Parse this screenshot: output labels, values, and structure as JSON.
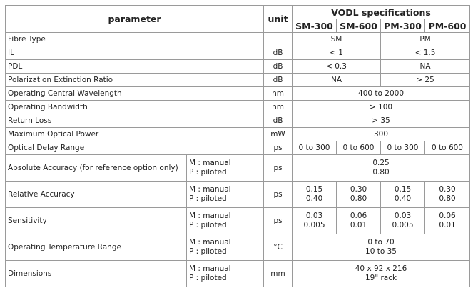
{
  "table": {
    "header": {
      "parameter": "parameter",
      "unit": "unit",
      "group": "VODL specifications",
      "columns": [
        "SM-300",
        "SM-600",
        "PM-300",
        "PM-600"
      ]
    },
    "rows": [
      {
        "parameter": "Fibre Type",
        "cells": [
          "SM",
          "PM"
        ]
      },
      {
        "parameter": "IL",
        "unit": "dB",
        "cells": [
          "< 1",
          "< 1.5"
        ]
      },
      {
        "parameter": "PDL",
        "unit": "dB",
        "cells": [
          "< 0.3",
          "NA"
        ]
      },
      {
        "parameter": "Polarization Extinction Ratio",
        "unit": "dB",
        "cells": [
          "NA",
          "> 25"
        ]
      },
      {
        "parameter": "Operating Central Wavelength",
        "unit": "nm",
        "cells": [
          "400 to 2000"
        ]
      },
      {
        "parameter": "Operating Bandwidth",
        "unit": "nm",
        "cells": [
          "> 100"
        ]
      },
      {
        "parameter": "Return Loss",
        "unit": "dB",
        "cells": [
          "> 35"
        ]
      },
      {
        "parameter": "Maximum Optical Power",
        "unit": "mW",
        "cells": [
          "300"
        ]
      },
      {
        "parameter": "Optical Delay Range",
        "unit": "ps",
        "cells": [
          "0 to 300",
          "0 to 600",
          "0 to 300",
          "0 to 600"
        ]
      },
      {
        "parameter": "Absolute Accuracy (for reference option only)",
        "modes": [
          "M : manual",
          "P : piloted"
        ],
        "unit": "ps",
        "cells": [
          [
            "0.25",
            "0.80"
          ]
        ]
      },
      {
        "parameter": "Relative Accuracy",
        "modes": [
          "M : manual",
          "P : piloted"
        ],
        "unit": "ps",
        "cells": [
          [
            "0.15",
            "0.40"
          ],
          [
            "0.30",
            "0.80"
          ],
          [
            "0.15",
            "0.40"
          ],
          [
            "0.30",
            "0.80"
          ]
        ]
      },
      {
        "parameter": "Sensitivity",
        "modes": [
          "M : manual",
          "P : piloted"
        ],
        "unit": "ps",
        "cells": [
          [
            "0.03",
            "0.005"
          ],
          [
            "0.06",
            "0.01"
          ],
          [
            "0.03",
            "0.005"
          ],
          [
            "0.06",
            "0.01"
          ]
        ]
      },
      {
        "parameter": "Operating Temperature Range",
        "modes": [
          "M : manual",
          "P : piloted"
        ],
        "unit": "°C",
        "cells": [
          [
            "0 to 70",
            "10 to 35"
          ]
        ]
      },
      {
        "parameter": "Dimensions",
        "modes": [
          "M : manual",
          "P : piloted"
        ],
        "unit": "mm",
        "cells": [
          [
            "40 x 92 x 216",
            "19\" rack"
          ]
        ]
      }
    ]
  }
}
